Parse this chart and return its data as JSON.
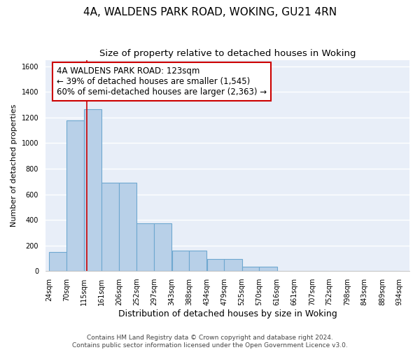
{
  "title1": "4A, WALDENS PARK ROAD, WOKING, GU21 4RN",
  "title2": "Size of property relative to detached houses in Woking",
  "xlabel": "Distribution of detached houses by size in Woking",
  "ylabel": "Number of detached properties",
  "bar_left_edges": [
    24,
    70,
    115,
    161,
    206,
    252,
    297,
    343,
    388,
    434,
    479,
    525,
    570,
    616,
    661,
    707,
    752,
    798,
    843,
    889
  ],
  "bar_widths": [
    46,
    45,
    46,
    45,
    46,
    45,
    46,
    45,
    46,
    45,
    46,
    45,
    46,
    45,
    46,
    45,
    46,
    45,
    46,
    45
  ],
  "bar_heights": [
    148,
    1175,
    1265,
    688,
    688,
    375,
    375,
    162,
    162,
    93,
    93,
    35,
    35,
    0,
    0,
    0,
    0,
    0,
    0,
    0
  ],
  "bar_color": "#b8d0e8",
  "bar_edgecolor": "#6fa8d0",
  "bar_linewidth": 0.8,
  "bg_color": "#e8eef8",
  "grid_color": "#ffffff",
  "red_line_x": 123,
  "red_line_color": "#cc0000",
  "annotation_line1": "4A WALDENS PARK ROAD: 123sqm",
  "annotation_line2": "← 39% of detached houses are smaller (1,545)",
  "annotation_line3": "60% of semi-detached houses are larger (2,363) →",
  "annotation_box_color": "#ffffff",
  "annotation_box_edgecolor": "#cc0000",
  "ylim": [
    0,
    1650
  ],
  "xlim": [
    15,
    960
  ],
  "xtick_labels": [
    "24sqm",
    "70sqm",
    "115sqm",
    "161sqm",
    "206sqm",
    "252sqm",
    "297sqm",
    "343sqm",
    "388sqm",
    "434sqm",
    "479sqm",
    "525sqm",
    "570sqm",
    "616sqm",
    "661sqm",
    "707sqm",
    "752sqm",
    "798sqm",
    "843sqm",
    "889sqm",
    "934sqm"
  ],
  "xtick_positions": [
    24,
    70,
    115,
    161,
    206,
    252,
    297,
    343,
    388,
    434,
    479,
    525,
    570,
    616,
    661,
    707,
    752,
    798,
    843,
    889,
    934
  ],
  "ytick_positions": [
    0,
    200,
    400,
    600,
    800,
    1000,
    1200,
    1400,
    1600
  ],
  "footnote": "Contains HM Land Registry data © Crown copyright and database right 2024.\nContains public sector information licensed under the Open Government Licence v3.0.",
  "title1_fontsize": 11,
  "title2_fontsize": 9.5,
  "xlabel_fontsize": 9,
  "ylabel_fontsize": 8,
  "tick_fontsize": 7,
  "annotation_fontsize": 8.5,
  "footnote_fontsize": 6.5
}
